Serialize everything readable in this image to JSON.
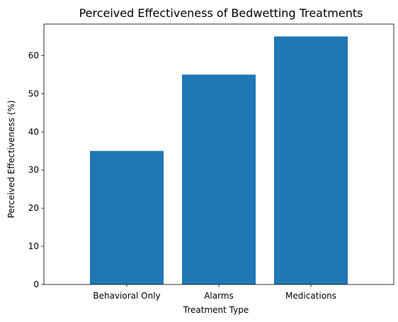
{
  "chart_data": {
    "type": "bar",
    "title": "Perceived Effectiveness of Bedwetting Treatments",
    "xlabel": "Treatment Type",
    "ylabel": "Perceived Effectiveness (%)",
    "categories": [
      "Behavioral Only",
      "Alarms",
      "Medications"
    ],
    "values": [
      35,
      55,
      65
    ],
    "ylim": [
      0,
      68.25
    ],
    "yticks": [
      0,
      10,
      20,
      30,
      40,
      50,
      60
    ],
    "grid": false,
    "bar_color": "#1f77b4"
  }
}
